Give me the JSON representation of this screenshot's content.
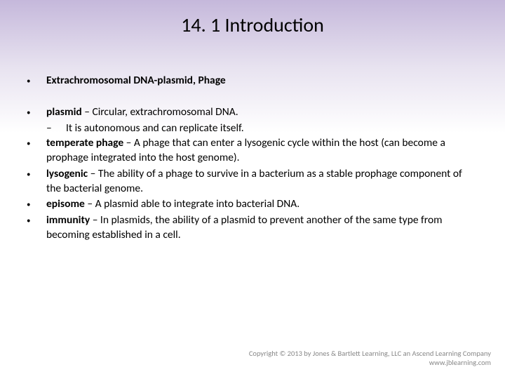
{
  "title": "14. 1  Introduction",
  "heading": "Extrachromosomal DNA-plasmid, Phage",
  "items": [
    {
      "term": "plasmid",
      "sep": " – ",
      "def": "Circular, extrachromosomal DNA.",
      "sub_mark": "–",
      "sub": "It is autonomous and can replicate itself."
    },
    {
      "term": "temperate phage",
      "sep": " – ",
      "def": "A phage that can enter a lysogenic cycle within the host (can become a prophage integrated into the host genome)."
    },
    {
      "term": "lysogenic",
      "sep": " – ",
      "def": "The ability of a phage to survive in a bacterium as a stable prophage component of the bacterial genome."
    },
    {
      "term": "episome",
      "sep": " –  ",
      "def": "A plasmid able to integrate into bacterial DNA."
    },
    {
      "term": "immunity",
      "sep": " – ",
      "def": "In plasmids, the ability of a plasmid to prevent another of the same type from becoming established in a cell."
    }
  ],
  "bullet_char": "•",
  "footer_line1": "Copyright © 2013 by Jones & Bartlett Learning, LLC an Ascend Learning Company",
  "footer_line2": "www.jblearning.com"
}
